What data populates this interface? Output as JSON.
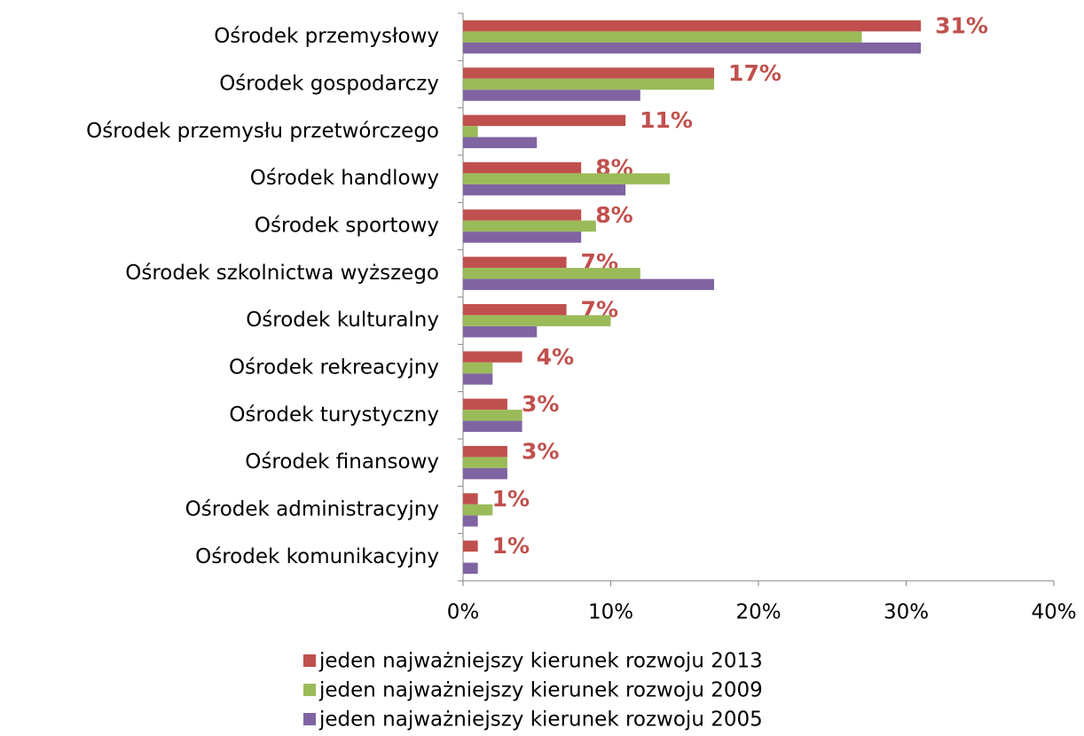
{
  "chart_data": {
    "type": "bar",
    "orientation": "horizontal",
    "categories": [
      "Ośrodek przemysłowy",
      "Ośrodek gospodarczy",
      "Ośrodek przemysłu przetwórczego",
      "Ośrodek handlowy",
      "Ośrodek sportowy",
      "Ośrodek szkolnictwa wyższego",
      "Ośrodek kulturalny",
      "Ośrodek rekreacyjny",
      "Ośrodek turystyczny",
      "Ośrodek finansowy",
      "Ośrodek administracyjny",
      "Ośrodek komunikacyjny"
    ],
    "series": [
      {
        "name": "jeden najważniejszy kierunek rozwoju 2013",
        "color": "#c0504d",
        "values": [
          31,
          17,
          11,
          8,
          8,
          7,
          7,
          4,
          3,
          3,
          1,
          1
        ],
        "value_labels": [
          "31%",
          "17%",
          "11%",
          "8%",
          "8%",
          "7%",
          "7%",
          "4%",
          "3%",
          "3%",
          "1%",
          "1%"
        ]
      },
      {
        "name": "jeden najważniejszy kierunek rozwoju 2009",
        "color": "#9bbb59",
        "values": [
          27,
          17,
          1,
          14,
          9,
          12,
          10,
          2,
          4,
          3,
          2,
          0
        ]
      },
      {
        "name": "jeden najważniejszy kierunek rozwoju 2005",
        "color": "#8064a2",
        "values": [
          31,
          12,
          5,
          11,
          8,
          17,
          5,
          2,
          4,
          3,
          1,
          1
        ]
      }
    ],
    "xlim": [
      0,
      40
    ],
    "xticks": [
      {
        "value": 0,
        "label": "0%"
      },
      {
        "value": 10,
        "label": "10%"
      },
      {
        "value": 20,
        "label": "20%"
      },
      {
        "value": 30,
        "label": "30%"
      },
      {
        "value": 40,
        "label": "40%"
      }
    ],
    "legend": "bottom"
  }
}
